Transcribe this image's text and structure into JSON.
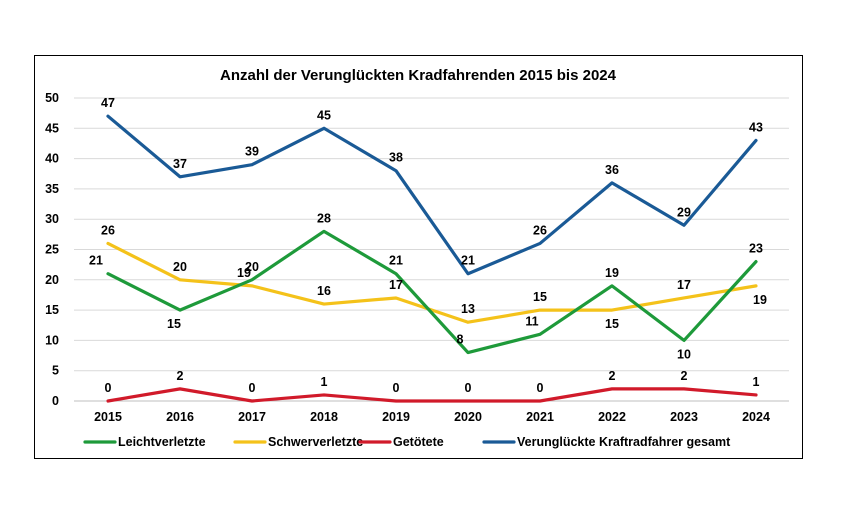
{
  "chart_data": {
    "type": "line",
    "title": "Anzahl der Verunglückten Kradfahrenden 2015 bis 2024",
    "xlabel": "",
    "ylabel": "",
    "categories": [
      "2015",
      "2016",
      "2017",
      "2018",
      "2019",
      "2020",
      "2021",
      "2022",
      "2023",
      "2024"
    ],
    "ylim": [
      0,
      50
    ],
    "yticks": [
      0,
      5,
      10,
      15,
      20,
      25,
      30,
      35,
      40,
      45,
      50
    ],
    "grid": true,
    "legend_position": "bottom",
    "series": [
      {
        "name": "Leichtverletzte",
        "color": "#1e9a3a",
        "values": [
          21,
          15,
          20,
          28,
          21,
          8,
          11,
          19,
          10,
          23
        ]
      },
      {
        "name": "Schwerverletzte",
        "color": "#f4c21a",
        "values": [
          26,
          20,
          19,
          16,
          17,
          13,
          15,
          15,
          17,
          19
        ]
      },
      {
        "name": "Getötete",
        "color": "#d11a2a",
        "values": [
          0,
          2,
          0,
          1,
          0,
          0,
          0,
          2,
          2,
          1
        ]
      },
      {
        "name": "Verunglückte Kraftradfahrer gesamt",
        "color": "#1a5a96",
        "values": [
          47,
          37,
          39,
          45,
          38,
          21,
          26,
          36,
          29,
          43
        ]
      }
    ]
  }
}
